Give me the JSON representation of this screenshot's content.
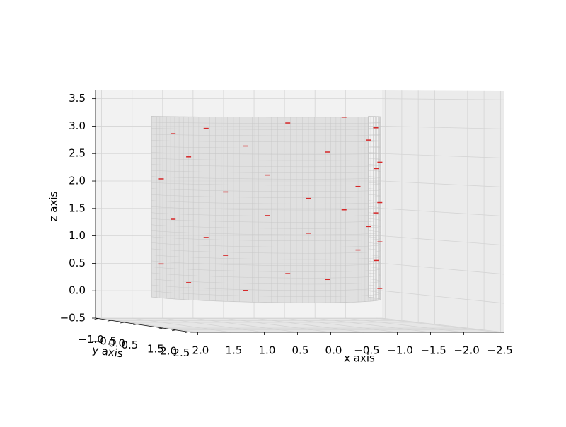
{
  "chart_data": {
    "type": "scatter3d",
    "xlabel": "x axis",
    "ylabel": "y axis",
    "zlabel": "z axis",
    "xlim": [
      2.1,
      -2.6
    ],
    "ylim": [
      -1.1,
      2.6
    ],
    "zlim": [
      -0.5,
      3.65
    ],
    "xticks": [
      {
        "value": 2.0,
        "label": "2.0"
      },
      {
        "value": 1.5,
        "label": "1.5"
      },
      {
        "value": 1.0,
        "label": "1.0"
      },
      {
        "value": 0.5,
        "label": "0.5"
      },
      {
        "value": 0.0,
        "label": "0.0"
      },
      {
        "value": -0.5,
        "label": "−0.5"
      },
      {
        "value": -1.0,
        "label": "−1.0"
      },
      {
        "value": -1.5,
        "label": "−1.5"
      },
      {
        "value": -2.0,
        "label": "−2.0"
      },
      {
        "value": -2.5,
        "label": "−2.5"
      }
    ],
    "yticks": [
      {
        "value": -1.0,
        "label": "−1.0"
      },
      {
        "value": -0.5,
        "label": "−0.5"
      },
      {
        "value": 0.0,
        "label": "0.0"
      },
      {
        "value": 0.5,
        "label": "0.5"
      },
      {
        "value": 1.5,
        "label": "1.5"
      },
      {
        "value": 2.0,
        "label": "2.0"
      },
      {
        "value": 2.5,
        "label": "2.5"
      }
    ],
    "zticks": [
      {
        "value": -0.5,
        "label": "−0.5"
      },
      {
        "value": 0.0,
        "label": "0.0"
      },
      {
        "value": 0.5,
        "label": "0.5"
      },
      {
        "value": 1.0,
        "label": "1.0"
      },
      {
        "value": 1.5,
        "label": "1.5"
      },
      {
        "value": 2.0,
        "label": "2.0"
      },
      {
        "value": 2.5,
        "label": "2.5"
      },
      {
        "value": 3.0,
        "label": "3.0"
      },
      {
        "value": 3.5,
        "label": "3.5"
      }
    ],
    "grid": true,
    "surface": {
      "center_x": 0.27,
      "center_y": 0.75,
      "radius": 1.7,
      "z_bottom": 0.0,
      "z_top": 3.2,
      "color": "#d9d9d9"
    },
    "points": {
      "color": "#d62728",
      "x": [
        1.94,
        1.94,
        1.87,
        1.87,
        1.74,
        1.74,
        1.57,
        1.57,
        1.36,
        1.36,
        1.12,
        1.12,
        0.85,
        0.85,
        0.57,
        0.57,
        0.27,
        0.27,
        -0.03,
        -0.03,
        -0.31,
        -0.31,
        -0.58,
        -0.58,
        -0.82,
        -0.82,
        -1.03,
        -1.03,
        -1.2,
        -1.2,
        -1.33,
        -1.33,
        -1.4,
        -1.4
      ],
      "y": [
        1.05,
        1.05,
        1.33,
        1.33,
        1.6,
        1.6,
        1.84,
        1.84,
        2.05,
        2.05,
        2.22,
        2.22,
        2.35,
        2.35,
        2.42,
        2.42,
        2.45,
        2.45,
        2.42,
        2.42,
        2.35,
        2.35,
        2.22,
        2.22,
        2.05,
        2.05,
        1.84,
        1.84,
        1.6,
        1.6,
        1.33,
        1.33,
        1.05,
        1.05
      ],
      "z": [
        2.1,
        0.6,
        2.9,
        1.4,
        0.3,
        2.5,
        1.1,
        3.0,
        1.9,
        0.8,
        2.7,
        0.2,
        1.5,
        2.2,
        0.5,
        3.1,
        1.8,
        1.2,
        2.6,
        0.4,
        1.6,
        3.2,
        0.9,
        2.0,
        1.3,
        2.8,
        0.7,
        2.3,
        1.7,
        0.2,
        1.0,
        2.4,
        1.5,
        3.0
      ]
    }
  }
}
